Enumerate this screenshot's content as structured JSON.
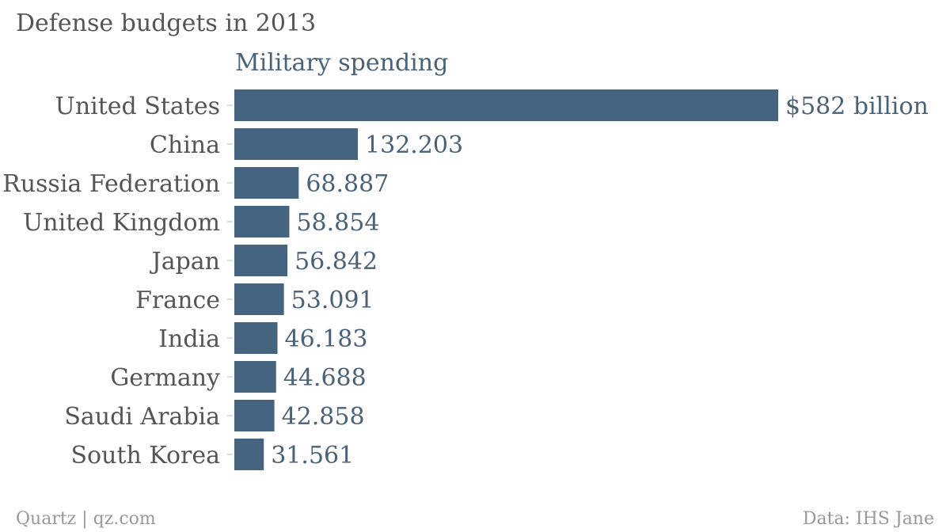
{
  "title": "Defense budgets in 2013",
  "footer": {
    "source_left": "Quartz | qz.com",
    "source_right": "Data: IHS Jane"
  },
  "colors": {
    "bar": "#45647f",
    "label": "#4a6278",
    "category": "#555555"
  },
  "chart_data": {
    "type": "bar",
    "orientation": "horizontal",
    "title": "Defense budgets in 2013",
    "categories": [
      "United States",
      "China",
      "Russia Federation",
      "United Kingdom",
      "Japan",
      "France",
      "India",
      "Germany",
      "Saudi Arabia",
      "South Korea"
    ],
    "series": [
      {
        "name": "Military spending",
        "values": [
          582,
          132.203,
          68.887,
          58.854,
          56.842,
          53.091,
          46.183,
          44.688,
          42.858,
          31.561
        ],
        "data_labels": [
          "$582 billion",
          "132.203",
          "68.887",
          "58.854",
          "56.842",
          "53.091",
          "46.183",
          "44.688",
          "42.858",
          "31.561"
        ]
      }
    ],
    "xlim": [
      0,
      582
    ],
    "grid": false,
    "legend": "none"
  }
}
